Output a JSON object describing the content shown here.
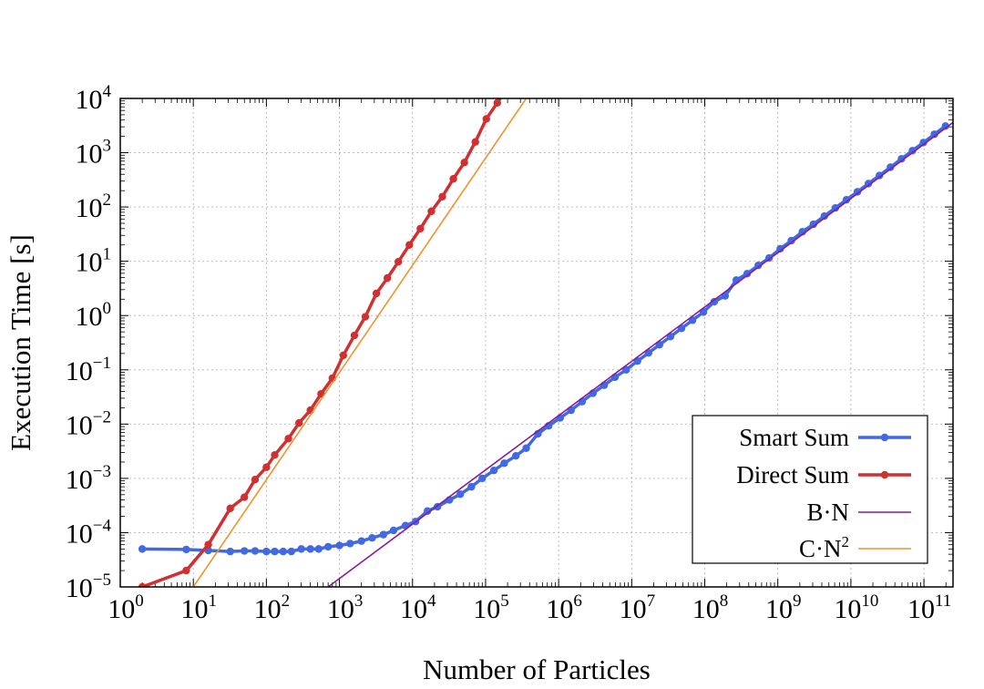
{
  "chart_data": {
    "type": "line",
    "xlabel": "Number of Particles",
    "ylabel": "Execution Time  [s]",
    "xscale": "log",
    "yscale": "log",
    "xlim": [
      1,
      250000000000
    ],
    "ylim": [
      1e-05,
      10000
    ],
    "grid": true,
    "legend_placement": "bottom-right",
    "x_ticks": [
      {
        "base": "10",
        "exp": "0"
      },
      {
        "base": "10",
        "exp": "1"
      },
      {
        "base": "10",
        "exp": "2"
      },
      {
        "base": "10",
        "exp": "3"
      },
      {
        "base": "10",
        "exp": "4"
      },
      {
        "base": "10",
        "exp": "5"
      },
      {
        "base": "10",
        "exp": "6"
      },
      {
        "base": "10",
        "exp": "7"
      },
      {
        "base": "10",
        "exp": "8"
      },
      {
        "base": "10",
        "exp": "9"
      },
      {
        "base": "10",
        "exp": "10"
      },
      {
        "base": "10",
        "exp": "11"
      }
    ],
    "y_ticks": [
      {
        "base": "10",
        "exp": "−5"
      },
      {
        "base": "10",
        "exp": "−4"
      },
      {
        "base": "10",
        "exp": "−3"
      },
      {
        "base": "10",
        "exp": "−2"
      },
      {
        "base": "10",
        "exp": "−1"
      },
      {
        "base": "10",
        "exp": "0"
      },
      {
        "base": "10",
        "exp": "1"
      },
      {
        "base": "10",
        "exp": "2"
      },
      {
        "base": "10",
        "exp": "3"
      },
      {
        "base": "10",
        "exp": "4"
      }
    ],
    "series": [
      {
        "name": "Smart Sum",
        "color": "#4169e1",
        "style": "line-markers",
        "x": [
          2,
          8,
          16,
          32,
          50,
          70,
          100,
          130,
          170,
          220,
          300,
          400,
          520,
          700,
          1000,
          1400,
          2000,
          2800,
          4000,
          5500,
          8000,
          11000,
          16000,
          22000,
          32000,
          45000,
          64000,
          90000,
          130000,
          180000,
          260000,
          360000,
          520000,
          730000,
          1050000,
          1480000,
          2100000,
          2950000,
          4200000,
          5900000,
          8400000,
          12000000,
          17000000,
          24000000,
          34000000,
          48000000,
          68000000,
          96000000,
          135000000,
          190000000,
          270000000,
          380000000,
          540000000,
          760000000,
          1080000000,
          1530000000,
          2170000000,
          3070000000,
          4340000000,
          6140000000,
          8690000000,
          12300000000,
          17400000000,
          24600000000,
          34800000000,
          49200000000,
          69600000000,
          98400000000,
          139000000000,
          197000000000
        ],
        "y": [
          5e-05,
          4.9e-05,
          4.7e-05,
          4.5e-05,
          4.6e-05,
          4.6e-05,
          4.5e-05,
          4.5e-05,
          4.5e-05,
          4.5e-05,
          5e-05,
          5e-05,
          5e-05,
          5.5e-05,
          5.8e-05,
          6.3e-05,
          7e-05,
          8e-05,
          9.2e-05,
          0.00011,
          0.000135,
          0.00016,
          0.00025,
          0.0003,
          0.0004,
          0.00051,
          0.0007,
          0.001,
          0.0014,
          0.0019,
          0.0026,
          0.0036,
          0.0066,
          0.0093,
          0.013,
          0.018,
          0.026,
          0.037,
          0.052,
          0.073,
          0.1,
          0.145,
          0.205,
          0.29,
          0.41,
          0.58,
          0.82,
          1.16,
          1.8,
          2.3,
          4.5,
          5.9,
          8.4,
          11.5,
          17,
          24,
          35,
          48,
          68,
          96,
          136,
          190,
          270,
          380,
          540,
          770,
          1090,
          1540,
          2190,
          3100
        ]
      },
      {
        "name": "Direct Sum",
        "color": "#d03030",
        "style": "line-markers",
        "x": [
          2,
          8,
          16,
          32,
          50,
          70,
          100,
          130,
          200,
          280,
          400,
          560,
          800,
          1130,
          1600,
          2260,
          3200,
          4530,
          6400,
          9050,
          12800,
          18100,
          25600,
          36200,
          51200,
          72400,
          102400,
          144800,
          204800
        ],
        "y": [
          1e-05,
          2e-05,
          6e-05,
          0.00028,
          0.00045,
          0.00095,
          0.0016,
          0.0027,
          0.0054,
          0.0105,
          0.018,
          0.036,
          0.07,
          0.185,
          0.43,
          0.95,
          2.55,
          4.9,
          9.8,
          20,
          40,
          83,
          155,
          330,
          660,
          1580,
          4200,
          8300,
          16600
        ]
      },
      {
        "name": "B·N",
        "color": "#8b1a9c",
        "style": "line",
        "x": [
          700,
          250000000000
        ],
        "y": [
          1e-05,
          3600
        ]
      },
      {
        "name": "C·N",
        "name_sup": "2",
        "color": "#f0932b",
        "style": "line",
        "x": [
          10,
          360000
        ],
        "y": [
          1e-05,
          10000
        ]
      }
    ]
  }
}
